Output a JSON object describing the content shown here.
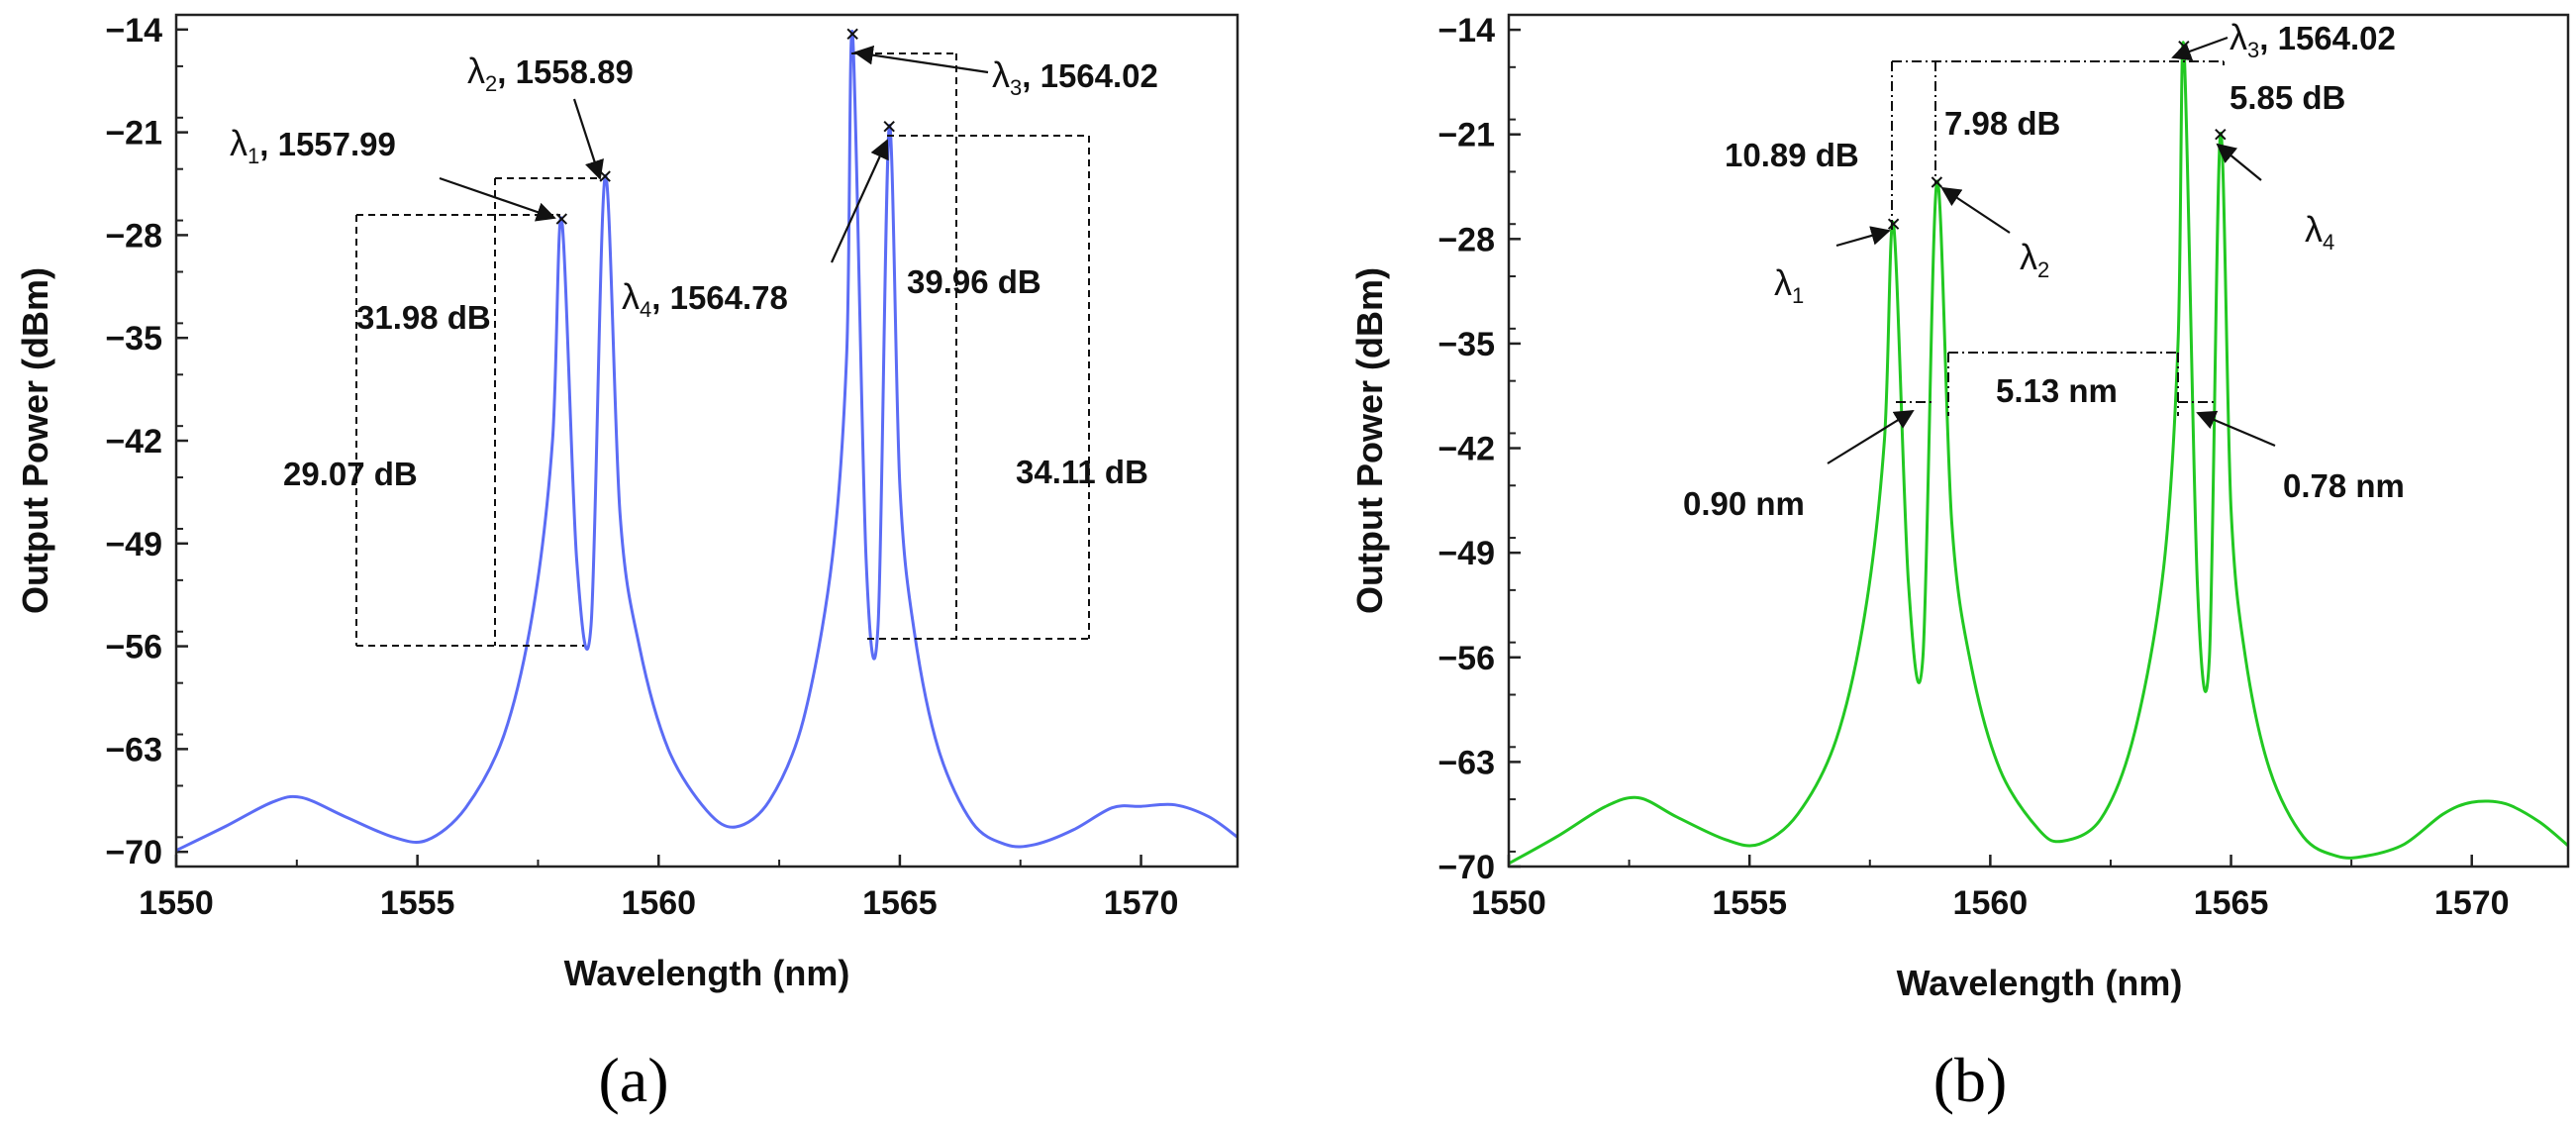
{
  "colors": {
    "panel_a": "#5b6cf5",
    "panel_b": "#22c822"
  },
  "chart_data": [
    {
      "type": "line",
      "panel_label": "(a)",
      "xlabel": "Wavelength (nm)",
      "ylabel": "Output Power (dBm)",
      "xlim": [
        1550,
        1572
      ],
      "ylim": [
        -71,
        -13
      ],
      "xticks": [
        1550,
        1555,
        1560,
        1565,
        1570
      ],
      "yticks": [
        -70,
        -63,
        -56,
        -49,
        -42,
        -35,
        -28,
        -21,
        -14
      ],
      "ytick_labels": [
        "−70",
        "−63",
        "−56",
        "−49",
        "−42",
        "−35",
        "−28",
        "−21",
        "−14"
      ],
      "color": "#5b6cf5",
      "peaks": [
        {
          "x": 1557.99,
          "y": -26.9
        },
        {
          "x": 1558.89,
          "y": -24.0
        },
        {
          "x": 1564.02,
          "y": -14.3
        },
        {
          "x": 1564.78,
          "y": -20.6
        }
      ],
      "series": [
        {
          "x": [
            1550.0,
            1551.0,
            1552.0,
            1552.6,
            1553.5,
            1554.5,
            1555.2,
            1556.0,
            1556.8,
            1557.4,
            1557.8,
            1557.99,
            1558.3,
            1558.6,
            1558.89,
            1559.2,
            1559.6,
            1560.2,
            1561.0,
            1561.6,
            1562.3,
            1563.0,
            1563.6,
            1563.9,
            1564.02,
            1564.3,
            1564.55,
            1564.78,
            1565.0,
            1565.3,
            1565.8,
            1566.5,
            1567.2,
            1567.8,
            1568.6,
            1569.4,
            1570.0,
            1570.7,
            1571.4,
            1572.0
          ],
          "y": [
            -69.9,
            -68.3,
            -66.6,
            -66.3,
            -67.6,
            -69.0,
            -69.2,
            -67.0,
            -62.0,
            -53.5,
            -42.0,
            -26.9,
            -50.0,
            -54.5,
            -24.0,
            -47.0,
            -56.0,
            -63.0,
            -67.2,
            -68.3,
            -66.5,
            -61.0,
            -50.0,
            -36.0,
            -14.3,
            -50.0,
            -54.5,
            -20.6,
            -45.0,
            -55.0,
            -63.0,
            -68.0,
            -69.5,
            -69.5,
            -68.5,
            -67.0,
            -66.9,
            -66.8,
            -67.6,
            -69.0
          ]
        }
      ],
      "annotations": {
        "lambda1": {
          "sym": "λ",
          "sub": "1",
          "text": ", 1557.99"
        },
        "lambda2": {
          "sym": "λ",
          "sub": "2",
          "text": ", 1558.89"
        },
        "lambda3": {
          "sym": "λ",
          "sub": "3",
          "text": ", 1564.02"
        },
        "lambda4": {
          "sym": "λ",
          "sub": "4",
          "text": ", 1564.78"
        },
        "db_31": "31.98 dB",
        "db_29": "29.07 dB",
        "db_39": "39.96 dB",
        "db_34": "34.11 dB"
      }
    },
    {
      "type": "line",
      "panel_label": "(b)",
      "xlabel": "Wavelength (nm)",
      "ylabel": "Output Power (dBm)",
      "xlim": [
        1550,
        1572
      ],
      "ylim": [
        -70,
        -13
      ],
      "xticks": [
        1550,
        1555,
        1560,
        1565,
        1570
      ],
      "yticks": [
        -70,
        -63,
        -56,
        -49,
        -42,
        -35,
        -28,
        -21,
        -14
      ],
      "ytick_labels": [
        "−70",
        "−63",
        "−56",
        "−49",
        "−42",
        "−35",
        "−28",
        "−21",
        "−14"
      ],
      "color": "#22c822",
      "peaks": [
        {
          "x": 1557.99,
          "y": -27.0
        },
        {
          "x": 1558.89,
          "y": -24.2
        },
        {
          "x": 1564.02,
          "y": -15.1
        },
        {
          "x": 1564.78,
          "y": -21.0
        }
      ],
      "series": [
        {
          "x": [
            1550.0,
            1551.0,
            1552.0,
            1552.7,
            1553.5,
            1554.5,
            1555.2,
            1556.0,
            1556.8,
            1557.4,
            1557.8,
            1557.99,
            1558.3,
            1558.6,
            1558.89,
            1559.2,
            1559.6,
            1560.2,
            1561.0,
            1561.5,
            1562.3,
            1563.0,
            1563.6,
            1563.9,
            1564.02,
            1564.3,
            1564.55,
            1564.78,
            1565.0,
            1565.3,
            1565.8,
            1566.5,
            1567.2,
            1567.8,
            1568.6,
            1569.4,
            1570.0,
            1570.7,
            1571.4,
            1572.0
          ],
          "y": [
            -69.8,
            -68.0,
            -66.0,
            -65.4,
            -66.7,
            -68.2,
            -68.5,
            -66.5,
            -61.5,
            -53.0,
            -41.5,
            -27.0,
            -51.0,
            -56.0,
            -24.2,
            -47.0,
            -56.5,
            -63.5,
            -67.5,
            -68.3,
            -66.8,
            -61.0,
            -50.0,
            -35.0,
            -15.1,
            -51.0,
            -56.0,
            -21.0,
            -46.0,
            -56.0,
            -63.5,
            -68.0,
            -69.3,
            -69.3,
            -68.5,
            -66.5,
            -65.7,
            -65.8,
            -67.0,
            -68.6
          ]
        }
      ],
      "annotations": {
        "lambda1": {
          "sym": "λ",
          "sub": "1"
        },
        "lambda2": {
          "sym": "λ",
          "sub": "2"
        },
        "lambda3": {
          "sym": "λ",
          "sub": "3",
          "text": ", 1564.02"
        },
        "lambda4": {
          "sym": "λ",
          "sub": "4"
        },
        "db_10": "10.89 dB",
        "db_7": "7.98 dB",
        "db_5": "5.85 dB",
        "nm_513": "5.13 nm",
        "nm_090": "0.90 nm",
        "nm_078": "0.78 nm"
      }
    }
  ]
}
